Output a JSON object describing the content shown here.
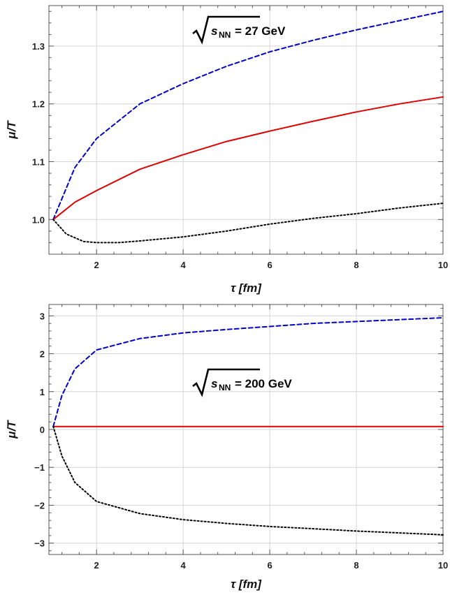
{
  "chart_data": [
    {
      "type": "line",
      "xlabel": "τ [fm]",
      "ylabel": "μ/T",
      "xlim": [
        0.9,
        10
      ],
      "ylim": [
        0.94,
        1.37
      ],
      "xticks": [
        2,
        4,
        6,
        8,
        10
      ],
      "yticks": [
        1.0,
        1.1,
        1.2,
        1.3
      ],
      "ytick_labels": [
        "1.0",
        "1.1",
        "1.2",
        "1.3"
      ],
      "grid": true,
      "annotation": {
        "root_var": "s",
        "subscript": "NN",
        "rest": " = 27 GeV"
      },
      "series": [
        {
          "color": "#0000cc",
          "dash": "dashed",
          "points": [
            [
              1,
              1.0
            ],
            [
              1.5,
              1.09
            ],
            [
              2,
              1.14
            ],
            [
              3,
              1.2
            ],
            [
              4,
              1.235
            ],
            [
              5,
              1.265
            ],
            [
              6,
              1.29
            ],
            [
              7,
              1.31
            ],
            [
              8,
              1.328
            ],
            [
              9,
              1.344
            ],
            [
              10,
              1.36
            ]
          ]
        },
        {
          "color": "#e00000",
          "dash": "solid",
          "points": [
            [
              1,
              1.0
            ],
            [
              1.5,
              1.03
            ],
            [
              2,
              1.05
            ],
            [
              3,
              1.087
            ],
            [
              4,
              1.112
            ],
            [
              5,
              1.135
            ],
            [
              6,
              1.153
            ],
            [
              7,
              1.17
            ],
            [
              8,
              1.186
            ],
            [
              9,
              1.2
            ],
            [
              10,
              1.212
            ]
          ]
        },
        {
          "color": "#000000",
          "dash": "dotted",
          "points": [
            [
              1,
              1.0
            ],
            [
              1.3,
              0.975
            ],
            [
              1.7,
              0.962
            ],
            [
              2,
              0.96
            ],
            [
              2.5,
              0.96
            ],
            [
              3,
              0.963
            ],
            [
              4,
              0.97
            ],
            [
              5,
              0.98
            ],
            [
              6,
              0.992
            ],
            [
              7,
              1.002
            ],
            [
              8,
              1.01
            ],
            [
              9,
              1.02
            ],
            [
              10,
              1.028
            ]
          ]
        }
      ]
    },
    {
      "type": "line",
      "xlabel": "τ [fm]",
      "ylabel": "μ/T",
      "xlim": [
        0.9,
        10
      ],
      "ylim": [
        -3.3,
        3.3
      ],
      "xticks": [
        2,
        4,
        6,
        8,
        10
      ],
      "yticks": [
        -3,
        -2,
        -1,
        0,
        1,
        2,
        3
      ],
      "ytick_labels": [
        "−3",
        "−2",
        "−1",
        "0",
        "1",
        "2",
        "3"
      ],
      "grid": true,
      "annotation": {
        "root_var": "s",
        "subscript": "NN",
        "rest": " = 200 GeV"
      },
      "series": [
        {
          "color": "#0000cc",
          "dash": "dashed",
          "points": [
            [
              1,
              0.08
            ],
            [
              1.2,
              0.9
            ],
            [
              1.5,
              1.6
            ],
            [
              2,
              2.1
            ],
            [
              3,
              2.4
            ],
            [
              4,
              2.55
            ],
            [
              5,
              2.64
            ],
            [
              6,
              2.72
            ],
            [
              7,
              2.8
            ],
            [
              8,
              2.85
            ],
            [
              9,
              2.9
            ],
            [
              10,
              2.95
            ]
          ]
        },
        {
          "color": "#e00000",
          "dash": "solid",
          "points": [
            [
              1,
              0.08
            ],
            [
              4,
              0.08
            ],
            [
              7,
              0.08
            ],
            [
              10,
              0.08
            ]
          ]
        },
        {
          "color": "#000000",
          "dash": "dotted",
          "points": [
            [
              1,
              0.08
            ],
            [
              1.2,
              -0.7
            ],
            [
              1.5,
              -1.4
            ],
            [
              2,
              -1.9
            ],
            [
              3,
              -2.22
            ],
            [
              4,
              -2.38
            ],
            [
              5,
              -2.48
            ],
            [
              6,
              -2.56
            ],
            [
              7,
              -2.62
            ],
            [
              8,
              -2.68
            ],
            [
              9,
              -2.73
            ],
            [
              10,
              -2.78
            ]
          ]
        }
      ]
    }
  ]
}
